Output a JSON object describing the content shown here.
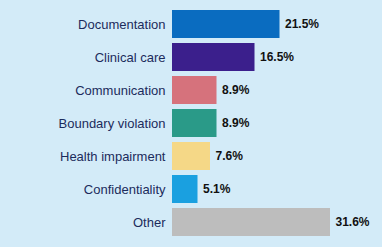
{
  "chart_data": {
    "type": "bar",
    "orientation": "horizontal",
    "categories": [
      "Documentation",
      "Clinical care",
      "Communication",
      "Boundary violation",
      "Health impairment",
      "Confidentiality",
      "Other"
    ],
    "values": [
      21.5,
      16.5,
      8.9,
      8.9,
      7.6,
      5.1,
      31.6
    ],
    "value_labels": [
      "21.5%",
      "16.5%",
      "8.9%",
      "8.9%",
      "7.6%",
      "5.1%",
      "31.6%"
    ],
    "colors": [
      "#0a6cc0",
      "#3b1f8c",
      "#d6727c",
      "#2a9a88",
      "#f5d887",
      "#1aa0e0",
      "#bdbdbd"
    ],
    "xlim": [
      0,
      31.6
    ],
    "data_labels": true,
    "tick_labels": "y",
    "grid": false
  }
}
